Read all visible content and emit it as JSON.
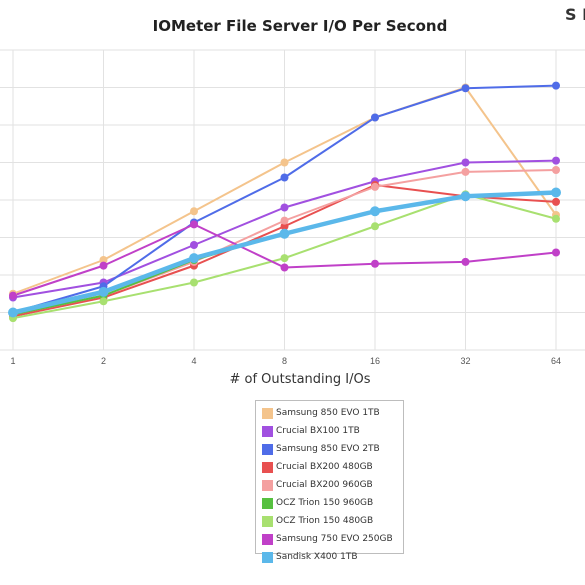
{
  "logo_text": "S R",
  "chart_data": {
    "type": "line",
    "title": "IOMeter File Server I/O Per Second",
    "xlabel": "# of Outstanding I/Os",
    "ylabel": "",
    "categories": [
      "1",
      "2",
      "4",
      "8",
      "16",
      "32",
      "64"
    ],
    "ylim": [
      0,
      8
    ],
    "grid": true,
    "legend_position": "bottom",
    "series": [
      {
        "name": "Samsung 850 EVO 1TB",
        "color": "#f4c48c",
        "values": [
          1.5,
          2.4,
          3.7,
          5.0,
          6.2,
          7.0,
          3.6
        ]
      },
      {
        "name": "Crucial BX100 1TB",
        "color": "#a150e0",
        "values": [
          1.4,
          1.8,
          2.8,
          3.8,
          4.5,
          5.0,
          5.05
        ]
      },
      {
        "name": "Samsung 850 EVO 2TB",
        "color": "#4f6ce8",
        "values": [
          1.0,
          1.7,
          3.4,
          4.6,
          6.2,
          6.98,
          7.05
        ]
      },
      {
        "name": "Crucial BX200 480GB",
        "color": "#e85050",
        "values": [
          0.9,
          1.4,
          2.25,
          3.3,
          4.4,
          4.1,
          3.95
        ]
      },
      {
        "name": "Crucial BX200 960GB",
        "color": "#f4a0a0",
        "values": [
          0.95,
          1.45,
          2.35,
          3.45,
          4.35,
          4.75,
          4.8
        ]
      },
      {
        "name": "OCZ Trion 150 960GB",
        "color": "#56c040",
        "values": [
          0.95,
          1.45,
          2.4,
          3.1,
          3.7,
          4.1,
          4.2
        ]
      },
      {
        "name": "OCZ Trion 150 480GB",
        "color": "#a8e070",
        "values": [
          0.85,
          1.3,
          1.8,
          2.45,
          3.3,
          4.15,
          3.5
        ]
      },
      {
        "name": "Samsung 750 EVO 250GB",
        "color": "#c040c8",
        "values": [
          1.45,
          2.25,
          3.35,
          2.2,
          2.3,
          2.35,
          2.6
        ]
      },
      {
        "name": "Sandisk X400 1TB",
        "color": "#5bb8ea",
        "values": [
          1.0,
          1.55,
          2.45,
          3.1,
          3.7,
          4.1,
          4.2
        ],
        "emphasis": true
      }
    ]
  }
}
